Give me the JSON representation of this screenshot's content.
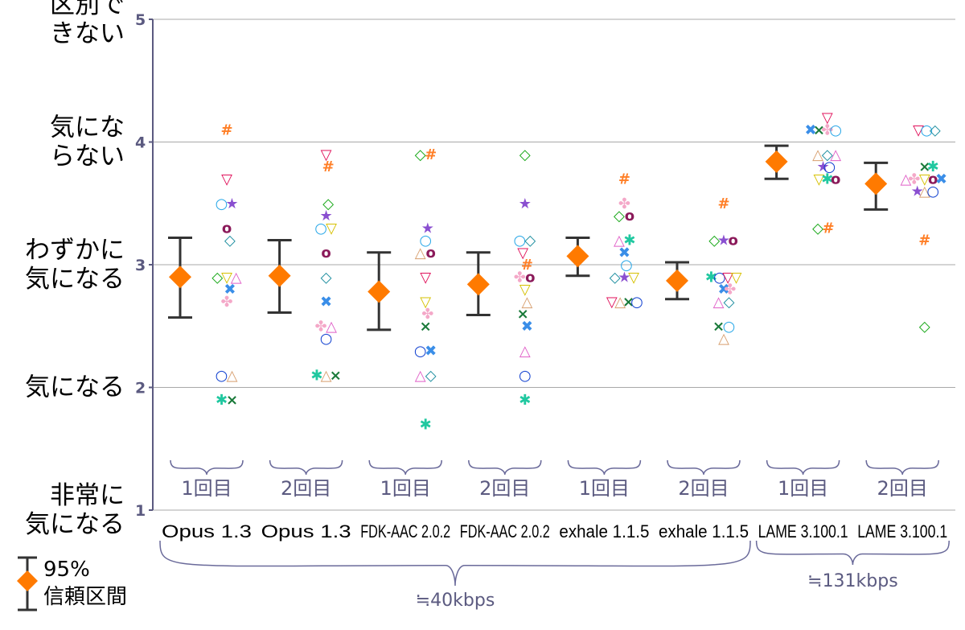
{
  "chart_data": {
    "type": "scatter",
    "title": "",
    "ylim": [
      1,
      5
    ],
    "y_ticks": [
      {
        "value": 1,
        "tick": "1",
        "lines": [
          "非常に",
          "気になる"
        ]
      },
      {
        "value": 2,
        "tick": "2",
        "lines": [
          "気になる"
        ]
      },
      {
        "value": 3,
        "tick": "3",
        "lines": [
          "わずかに",
          "気になる"
        ]
      },
      {
        "value": 4,
        "tick": "4",
        "lines": [
          "気にな",
          "らない"
        ]
      },
      {
        "value": 5,
        "tick": "5",
        "lines": [
          "区別で",
          "きない"
        ]
      }
    ],
    "grid": true,
    "categories": [
      {
        "codec": "Opus 1.3",
        "trial": "1回目",
        "mean": 2.9,
        "ci": [
          2.57,
          3.22
        ]
      },
      {
        "codec": "Opus 1.3",
        "trial": "2回目",
        "mean": 2.91,
        "ci": [
          2.61,
          3.2
        ]
      },
      {
        "codec": "FDK-AAC 2.0.2",
        "trial": "1回目",
        "mean": 2.78,
        "ci": [
          2.47,
          3.1
        ]
      },
      {
        "codec": "FDK-AAC 2.0.2",
        "trial": "2回目",
        "mean": 2.84,
        "ci": [
          2.59,
          3.1
        ]
      },
      {
        "codec": "exhale 1.1.5",
        "trial": "1回目",
        "mean": 3.07,
        "ci": [
          2.91,
          3.22
        ]
      },
      {
        "codec": "exhale 1.1.5",
        "trial": "2回目",
        "mean": 2.87,
        "ci": [
          2.72,
          3.02
        ]
      },
      {
        "codec": "LAME 3.100.1",
        "trial": "1回目",
        "mean": 3.84,
        "ci": [
          3.7,
          3.97
        ]
      },
      {
        "codec": "LAME 3.100.1",
        "trial": "2回目",
        "mean": 3.66,
        "ci": [
          3.45,
          3.83
        ]
      }
    ],
    "bitrate_groups": [
      {
        "label": "≒40kbps",
        "from": 0,
        "to": 5
      },
      {
        "label": "≒131kbps",
        "from": 6,
        "to": 7
      }
    ],
    "listener_symbols": [
      {
        "id": "A",
        "glyph": "#",
        "color": "#ff7f27"
      },
      {
        "id": "B",
        "glyph": "▽",
        "color": "#e0105a"
      },
      {
        "id": "C",
        "glyph": "o",
        "color": "#8b1a5a"
      },
      {
        "id": "D",
        "glyph": "★",
        "color": "#8a4fd0"
      },
      {
        "id": "E",
        "glyph": "○",
        "color": "#2aa8e8"
      },
      {
        "id": "F",
        "glyph": "◇",
        "color": "#1f8fa0"
      },
      {
        "id": "G",
        "glyph": "◇",
        "color": "#18a818"
      },
      {
        "id": "H",
        "glyph": "▽",
        "color": "#d6c000"
      },
      {
        "id": "I",
        "glyph": "△",
        "color": "#e060c8"
      },
      {
        "id": "J",
        "glyph": "✖",
        "color": "#3a8ee8"
      },
      {
        "id": "K",
        "glyph": "✤",
        "color": "#f4a8c8"
      },
      {
        "id": "L",
        "glyph": "○",
        "color": "#1040d0"
      },
      {
        "id": "M",
        "glyph": "△",
        "color": "#d8a070"
      },
      {
        "id": "N",
        "glyph": "✱",
        "color": "#20c8a0"
      },
      {
        "id": "O",
        "glyph": "×",
        "color": "#1a7a3a"
      }
    ],
    "scores": [
      [
        {
          "s": "A",
          "y": 4.1,
          "d": 0
        },
        {
          "s": "B",
          "y": 3.7,
          "d": 0
        },
        {
          "s": "E",
          "y": 3.5,
          "d": -0.5
        },
        {
          "s": "D",
          "y": 3.5,
          "d": 0.5
        },
        {
          "s": "C",
          "y": 3.3,
          "d": 0
        },
        {
          "s": "F",
          "y": 3.2,
          "d": 0.3
        },
        {
          "s": "G",
          "y": 2.9,
          "d": -0.9
        },
        {
          "s": "H",
          "y": 2.9,
          "d": 0
        },
        {
          "s": "I",
          "y": 2.9,
          "d": 0.9
        },
        {
          "s": "J",
          "y": 2.8,
          "d": 0.3
        },
        {
          "s": "K",
          "y": 2.7,
          "d": 0
        },
        {
          "s": "L",
          "y": 2.1,
          "d": -0.5
        },
        {
          "s": "M",
          "y": 2.1,
          "d": 0.5
        },
        {
          "s": "N",
          "y": 1.9,
          "d": -0.5
        },
        {
          "s": "O",
          "y": 1.9,
          "d": 0.5
        }
      ],
      [
        {
          "s": "B",
          "y": 3.9,
          "d": 0
        },
        {
          "s": "A",
          "y": 3.8,
          "d": 0.2
        },
        {
          "s": "G",
          "y": 3.5,
          "d": 0.2
        },
        {
          "s": "D",
          "y": 3.4,
          "d": 0
        },
        {
          "s": "E",
          "y": 3.3,
          "d": -0.5
        },
        {
          "s": "H",
          "y": 3.3,
          "d": 0.5
        },
        {
          "s": "C",
          "y": 3.1,
          "d": 0
        },
        {
          "s": "F",
          "y": 2.9,
          "d": 0
        },
        {
          "s": "J",
          "y": 2.7,
          "d": 0
        },
        {
          "s": "K",
          "y": 2.5,
          "d": -0.5
        },
        {
          "s": "I",
          "y": 2.5,
          "d": 0.5
        },
        {
          "s": "L",
          "y": 2.4,
          "d": 0
        },
        {
          "s": "N",
          "y": 2.1,
          "d": -0.9
        },
        {
          "s": "M",
          "y": 2.1,
          "d": 0
        },
        {
          "s": "O",
          "y": 2.1,
          "d": 0.9
        }
      ],
      [
        {
          "s": "G",
          "y": 3.9,
          "d": -0.5
        },
        {
          "s": "A",
          "y": 3.9,
          "d": 0.5
        },
        {
          "s": "D",
          "y": 3.3,
          "d": 0.2
        },
        {
          "s": "E",
          "y": 3.2,
          "d": 0
        },
        {
          "s": "M",
          "y": 3.1,
          "d": -0.5
        },
        {
          "s": "C",
          "y": 3.1,
          "d": 0.5
        },
        {
          "s": "B",
          "y": 2.9,
          "d": 0
        },
        {
          "s": "H",
          "y": 2.7,
          "d": 0
        },
        {
          "s": "K",
          "y": 2.6,
          "d": 0.2
        },
        {
          "s": "O",
          "y": 2.5,
          "d": 0
        },
        {
          "s": "L",
          "y": 2.3,
          "d": -0.5
        },
        {
          "s": "J",
          "y": 2.3,
          "d": 0.5
        },
        {
          "s": "I",
          "y": 2.1,
          "d": -0.5
        },
        {
          "s": "F",
          "y": 2.1,
          "d": 0.5
        },
        {
          "s": "N",
          "y": 1.7,
          "d": 0
        }
      ],
      [
        {
          "s": "G",
          "y": 3.9,
          "d": 0
        },
        {
          "s": "D",
          "y": 3.5,
          "d": 0
        },
        {
          "s": "E",
          "y": 3.2,
          "d": -0.5
        },
        {
          "s": "F",
          "y": 3.2,
          "d": 0.5
        },
        {
          "s": "B",
          "y": 3.1,
          "d": -0.2
        },
        {
          "s": "A",
          "y": 3.0,
          "d": 0.2
        },
        {
          "s": "K",
          "y": 2.9,
          "d": -0.5
        },
        {
          "s": "C",
          "y": 2.9,
          "d": 0.5
        },
        {
          "s": "H",
          "y": 2.8,
          "d": 0
        },
        {
          "s": "M",
          "y": 2.7,
          "d": 0.2
        },
        {
          "s": "O",
          "y": 2.6,
          "d": -0.2
        },
        {
          "s": "J",
          "y": 2.5,
          "d": 0.2
        },
        {
          "s": "I",
          "y": 2.3,
          "d": 0
        },
        {
          "s": "L",
          "y": 2.1,
          "d": 0
        },
        {
          "s": "N",
          "y": 1.9,
          "d": 0
        }
      ],
      [
        {
          "s": "A",
          "y": 3.7,
          "d": 0
        },
        {
          "s": "K",
          "y": 3.5,
          "d": 0
        },
        {
          "s": "G",
          "y": 3.4,
          "d": -0.5
        },
        {
          "s": "C",
          "y": 3.4,
          "d": 0.5
        },
        {
          "s": "I",
          "y": 3.2,
          "d": -0.5
        },
        {
          "s": "N",
          "y": 3.2,
          "d": 0.5
        },
        {
          "s": "J",
          "y": 3.1,
          "d": 0
        },
        {
          "s": "E",
          "y": 3.0,
          "d": 0.2
        },
        {
          "s": "F",
          "y": 2.9,
          "d": -0.9
        },
        {
          "s": "D",
          "y": 2.9,
          "d": 0
        },
        {
          "s": "H",
          "y": 2.9,
          "d": 0.9
        },
        {
          "s": "B",
          "y": 2.7,
          "d": -1.2
        },
        {
          "s": "M",
          "y": 2.7,
          "d": -0.4
        },
        {
          "s": "O",
          "y": 2.7,
          "d": 0.4
        },
        {
          "s": "L",
          "y": 2.7,
          "d": 1.2
        }
      ],
      [
        {
          "s": "A",
          "y": 3.5,
          "d": 0
        },
        {
          "s": "G",
          "y": 3.2,
          "d": -0.9
        },
        {
          "s": "D",
          "y": 3.2,
          "d": 0
        },
        {
          "s": "C",
          "y": 3.2,
          "d": 0.9
        },
        {
          "s": "N",
          "y": 2.9,
          "d": -1.2
        },
        {
          "s": "L",
          "y": 2.9,
          "d": -0.4
        },
        {
          "s": "B",
          "y": 2.9,
          "d": 0.4
        },
        {
          "s": "H",
          "y": 2.9,
          "d": 1.2
        },
        {
          "s": "J",
          "y": 2.8,
          "d": 0
        },
        {
          "s": "K",
          "y": 2.8,
          "d": 0.6
        },
        {
          "s": "I",
          "y": 2.7,
          "d": -0.5
        },
        {
          "s": "F",
          "y": 2.7,
          "d": 0.5
        },
        {
          "s": "O",
          "y": 2.5,
          "d": -0.5
        },
        {
          "s": "E",
          "y": 2.5,
          "d": 0.5
        },
        {
          "s": "M",
          "y": 2.4,
          "d": 0
        }
      ],
      [
        {
          "s": "B",
          "y": 4.2,
          "d": 0.4
        },
        {
          "s": "J",
          "y": 4.1,
          "d": -1.2
        },
        {
          "s": "O",
          "y": 4.1,
          "d": -0.4
        },
        {
          "s": "K",
          "y": 4.1,
          "d": 0.4
        },
        {
          "s": "E",
          "y": 4.1,
          "d": 1.2
        },
        {
          "s": "M",
          "y": 3.9,
          "d": -0.5
        },
        {
          "s": "F",
          "y": 3.9,
          "d": 0.4
        },
        {
          "s": "I",
          "y": 3.9,
          "d": 1.2
        },
        {
          "s": "D",
          "y": 3.8,
          "d": 0
        },
        {
          "s": "L",
          "y": 3.8,
          "d": 0.6
        },
        {
          "s": "H",
          "y": 3.7,
          "d": -0.4
        },
        {
          "s": "N",
          "y": 3.7,
          "d": 0.4
        },
        {
          "s": "C",
          "y": 3.7,
          "d": 1.2
        },
        {
          "s": "G",
          "y": 3.3,
          "d": -0.5
        },
        {
          "s": "A",
          "y": 3.3,
          "d": 0.5
        }
      ],
      [
        {
          "s": "B",
          "y": 4.1,
          "d": -0.4
        },
        {
          "s": "E",
          "y": 4.1,
          "d": 0.4
        },
        {
          "s": "F",
          "y": 4.1,
          "d": 1.2
        },
        {
          "s": "O",
          "y": 3.8,
          "d": 0.2
        },
        {
          "s": "N",
          "y": 3.8,
          "d": 1.0
        },
        {
          "s": "I",
          "y": 3.7,
          "d": -1.6
        },
        {
          "s": "K",
          "y": 3.7,
          "d": -0.8
        },
        {
          "s": "H",
          "y": 3.7,
          "d": 0.2
        },
        {
          "s": "C",
          "y": 3.7,
          "d": 1.0
        },
        {
          "s": "J",
          "y": 3.7,
          "d": 1.8
        },
        {
          "s": "D",
          "y": 3.6,
          "d": -0.5
        },
        {
          "s": "M",
          "y": 3.6,
          "d": 0.2
        },
        {
          "s": "L",
          "y": 3.6,
          "d": 1.0
        },
        {
          "s": "A",
          "y": 3.2,
          "d": 0.2
        },
        {
          "s": "G",
          "y": 2.5,
          "d": 0.2
        }
      ]
    ],
    "legend": {
      "ci_label_1": "95%",
      "ci_label_2": "信頼区間",
      "mean_color": "#ff7a00",
      "ci_color": "#333333"
    },
    "colors": {
      "axis": "#5b5a80",
      "grid": "#a8a8a8",
      "brace": "#6a6a9a"
    }
  }
}
